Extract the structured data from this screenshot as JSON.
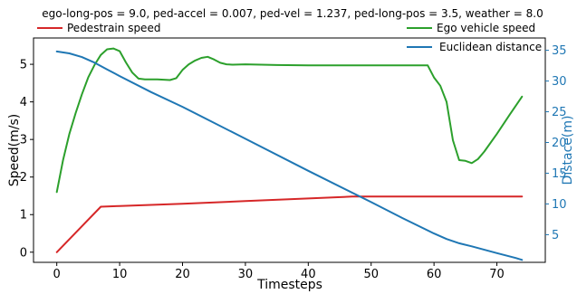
{
  "chart_data": {
    "type": "line",
    "title": "ego-long-pos = 9.0, ped-accel = 0.007, ped-vel = 1.237, ped-long-pos = 3.5, weather = 8.0",
    "xlabel": "Timesteps",
    "ylabel_left": "Speed(m/s)",
    "ylabel_right": "Distace(m)",
    "xlim": [
      -3.7,
      77.7
    ],
    "ylim_left": [
      -0.27,
      5.7
    ],
    "ylim_right": [
      0.5,
      37.0
    ],
    "xticks": [
      0,
      10,
      20,
      30,
      40,
      50,
      60,
      70
    ],
    "yticks_left": [
      0,
      1,
      2,
      3,
      4,
      5
    ],
    "yticks_right": [
      5,
      10,
      15,
      20,
      25,
      30,
      35
    ],
    "grid": false,
    "legend_left": {
      "placement": "top-left",
      "entries": [
        "Pedestrain speed"
      ]
    },
    "legend_right": {
      "placement": "top-right",
      "entries": [
        "Ego vehicle speed",
        "Euclidean distance"
      ]
    },
    "series": [
      {
        "name": "Pedestrain speed",
        "axis": "left",
        "color": "#d62728",
        "x": [
          0,
          7,
          10,
          20,
          30,
          40,
          47,
          50,
          60,
          74
        ],
        "y": [
          0.0,
          1.21,
          1.23,
          1.29,
          1.36,
          1.43,
          1.48,
          1.48,
          1.48,
          1.48
        ]
      },
      {
        "name": "Ego vehicle speed",
        "axis": "left",
        "color": "#2ca02c",
        "x": [
          0,
          1,
          2,
          3,
          4,
          5,
          6,
          7,
          8,
          9,
          10,
          11,
          12,
          13,
          14,
          15,
          16,
          17,
          18,
          19,
          20,
          21,
          22,
          23,
          24,
          25,
          26,
          27,
          28,
          30,
          35,
          40,
          45,
          50,
          55,
          59,
          60,
          61,
          62,
          63,
          64,
          65,
          66,
          67,
          68,
          70,
          72,
          74
        ],
        "y": [
          1.6,
          2.45,
          3.15,
          3.7,
          4.2,
          4.65,
          4.98,
          5.25,
          5.4,
          5.42,
          5.35,
          5.05,
          4.78,
          4.62,
          4.6,
          4.6,
          4.6,
          4.59,
          4.58,
          4.63,
          4.85,
          5.0,
          5.1,
          5.17,
          5.2,
          5.13,
          5.04,
          5.0,
          4.99,
          5.0,
          4.98,
          4.97,
          4.97,
          4.97,
          4.97,
          4.97,
          4.65,
          4.43,
          4.0,
          2.98,
          2.45,
          2.43,
          2.37,
          2.48,
          2.68,
          3.15,
          3.65,
          4.14
        ]
      },
      {
        "name": "Euclidean distance",
        "axis": "right",
        "color": "#1f77b4",
        "x": [
          0,
          2,
          4,
          6,
          8,
          10,
          15,
          20,
          30,
          40,
          50,
          55,
          60,
          62,
          64,
          66,
          70,
          73,
          74
        ],
        "y": [
          34.8,
          34.5,
          33.9,
          33.0,
          31.9,
          30.8,
          28.2,
          25.8,
          20.6,
          15.4,
          10.3,
          7.7,
          5.2,
          4.3,
          3.6,
          3.1,
          2.0,
          1.2,
          0.9
        ]
      }
    ]
  }
}
